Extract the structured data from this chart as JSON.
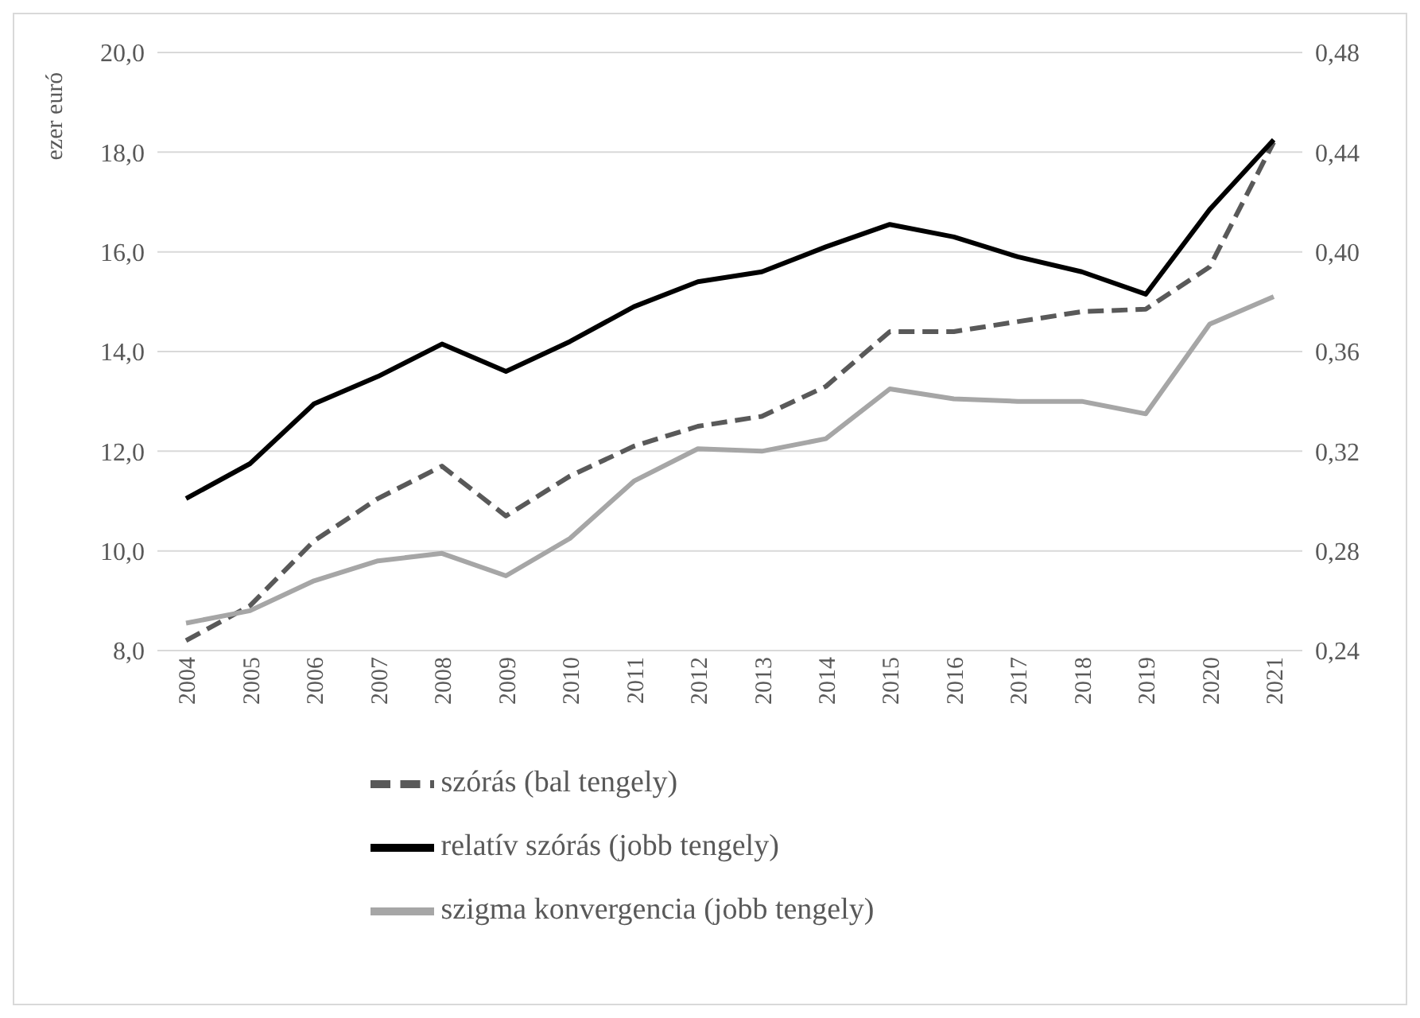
{
  "chart_data": {
    "type": "line",
    "ylabel": "ezer euró",
    "categories": [
      "2004",
      "2005",
      "2006",
      "2007",
      "2008",
      "2009",
      "2010",
      "2011",
      "2012",
      "2013",
      "2014",
      "2015",
      "2016",
      "2017",
      "2018",
      "2019",
      "2020",
      "2021"
    ],
    "series": [
      {
        "name": "szórás (bal tengely)",
        "color": "#595959",
        "line_style": "dashed",
        "axis": "y",
        "values": [
          8.2,
          8.9,
          10.2,
          11.05,
          11.7,
          10.7,
          11.5,
          12.1,
          12.5,
          12.7,
          13.3,
          14.4,
          14.4,
          14.6,
          14.8,
          14.85,
          15.7,
          18.2
        ]
      },
      {
        "name": "relatív szórás (jobb tengely)",
        "color": "#000000",
        "line_style": "solid",
        "axis": "y2",
        "values": [
          0.301,
          0.315,
          0.339,
          0.35,
          0.363,
          0.352,
          0.364,
          0.378,
          0.388,
          0.392,
          0.402,
          0.411,
          0.406,
          0.398,
          0.392,
          0.383,
          0.417,
          0.445
        ]
      },
      {
        "name": "szigma konvergencia (jobb tengely)",
        "color": "#a6a6a6",
        "line_style": "solid",
        "axis": "y2",
        "values": [
          0.251,
          0.256,
          0.268,
          0.276,
          0.279,
          0.27,
          0.285,
          0.308,
          0.321,
          0.32,
          0.325,
          0.345,
          0.341,
          0.34,
          0.34,
          0.335,
          0.371,
          0.382
        ]
      }
    ],
    "ylim": [
      8,
      20
    ],
    "yticks": [
      {
        "value": 8,
        "label": "8,0"
      },
      {
        "value": 10,
        "label": "10,0"
      },
      {
        "value": 12,
        "label": "12,0"
      },
      {
        "value": 14,
        "label": "14,0"
      },
      {
        "value": 16,
        "label": "16,0"
      },
      {
        "value": 18,
        "label": "18,0"
      },
      {
        "value": 20,
        "label": "20,0"
      }
    ],
    "y2lim": [
      0.24,
      0.48
    ],
    "y2ticks": [
      {
        "value": 0.24,
        "label": "0,24"
      },
      {
        "value": 0.28,
        "label": "0,28"
      },
      {
        "value": 0.32,
        "label": "0,32"
      },
      {
        "value": 0.36,
        "label": "0,36"
      },
      {
        "value": 0.4,
        "label": "0,40"
      },
      {
        "value": 0.44,
        "label": "0,44"
      },
      {
        "value": 0.48,
        "label": "0,48"
      }
    ],
    "grid": "y",
    "legend": "bottom",
    "marker": "none"
  }
}
